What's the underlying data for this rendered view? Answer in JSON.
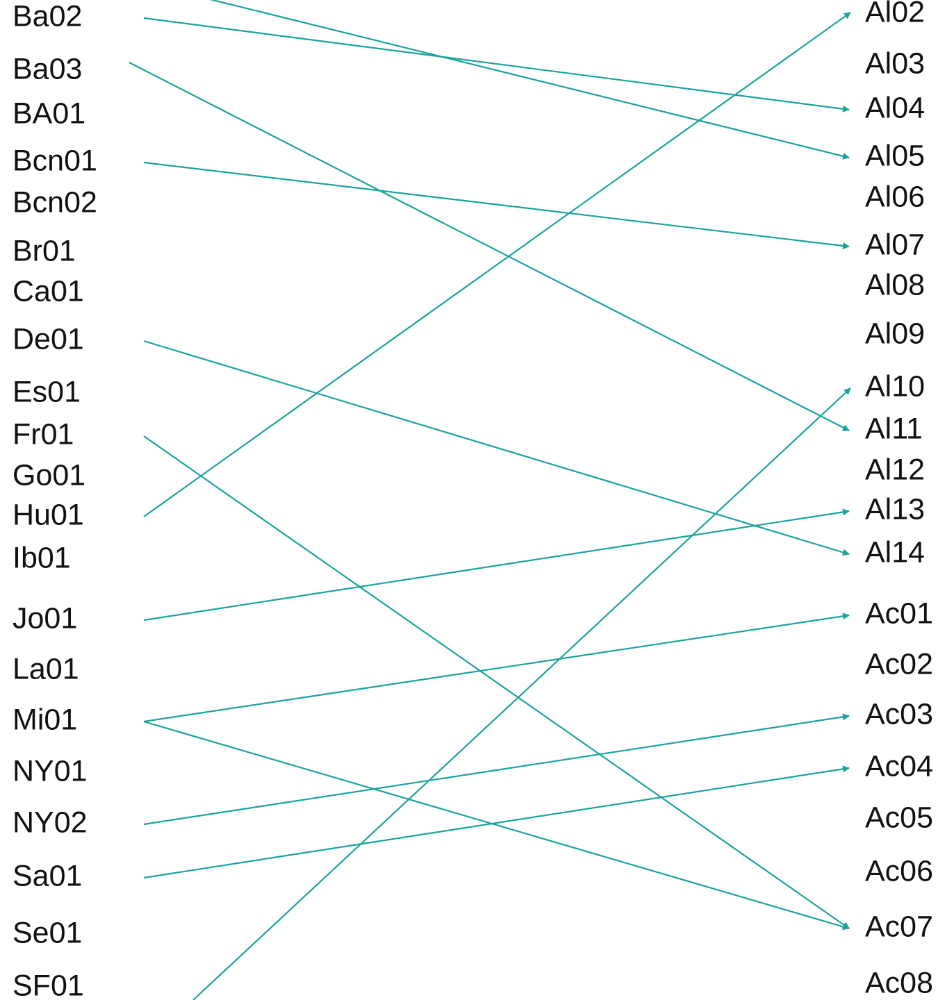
{
  "left_nodes": [
    "Ba02",
    "Ba03",
    "BA01",
    "Bcn01",
    "Bcn02",
    "Br01",
    "Ca01",
    "De01",
    "Es01",
    "Fr01",
    "Go01",
    "Hu01",
    "Ib01",
    "Jo01",
    "La01",
    "Mi01",
    "NY01",
    "NY02",
    "Sa01",
    "Se01",
    "SF01"
  ],
  "right_nodes": [
    "Al02",
    "Al03",
    "Al04",
    "Al05",
    "Al06",
    "Al07",
    "Al08",
    "Al09",
    "Al10",
    "Al11",
    "Al12",
    "Al13",
    "Al14",
    "Ac01",
    "Ac02",
    "Ac03",
    "Ac04",
    "Ac05",
    "Ac06",
    "Ac07",
    "Ac08"
  ],
  "edges": [
    {
      "from": "Ba02",
      "to": "Al04"
    },
    {
      "from": "Ba03",
      "to": "Al11"
    },
    {
      "from": "Bcn01",
      "to": "Al07"
    },
    {
      "from": "De01",
      "to": "Al14"
    },
    {
      "from": "Fr01",
      "to": "Ac07"
    },
    {
      "from": "Hu01",
      "to": "Al02"
    },
    {
      "from": "Jo01",
      "to": "Al13"
    },
    {
      "from": "Mi01",
      "to": "Ac01"
    },
    {
      "from": "Mi01",
      "to": "Ac07"
    },
    {
      "from": "NY02",
      "to": "Ac03"
    },
    {
      "from": "Sa01",
      "to": "Ac04"
    },
    {
      "from": "SF01",
      "to": "Al10"
    },
    {
      "from": "",
      "to": "Al05"
    }
  ],
  "colors": {
    "arrow": "#1aa39a",
    "text": "#111111",
    "background": "#ffffff"
  }
}
